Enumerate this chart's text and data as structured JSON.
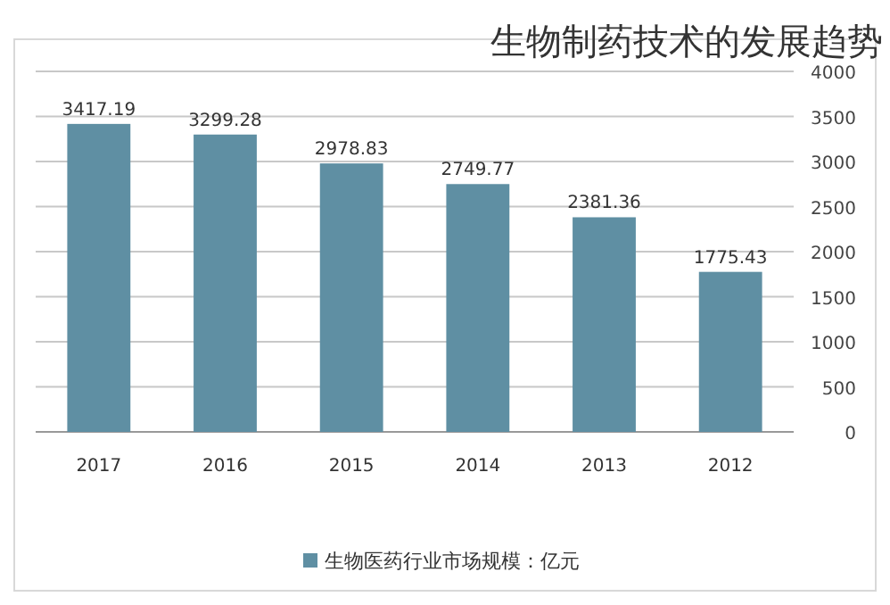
{
  "chart_data": {
    "type": "bar",
    "title": "生物制药技术的发展趋势",
    "categories": [
      "2017",
      "2016",
      "2015",
      "2014",
      "2013",
      "2012"
    ],
    "series": [
      {
        "name": "生物医药行业市场规模：亿元",
        "color": "#5f8fa3",
        "values": [
          3417.19,
          3299.28,
          2978.83,
          2749.77,
          2381.36,
          1775.43
        ]
      }
    ],
    "data_labels": true,
    "ylim": [
      0,
      4000
    ],
    "yticks": [
      0,
      500,
      1000,
      1500,
      2000,
      2500,
      3000,
      3500,
      4000
    ],
    "grid": "y",
    "legend": "bottom"
  }
}
